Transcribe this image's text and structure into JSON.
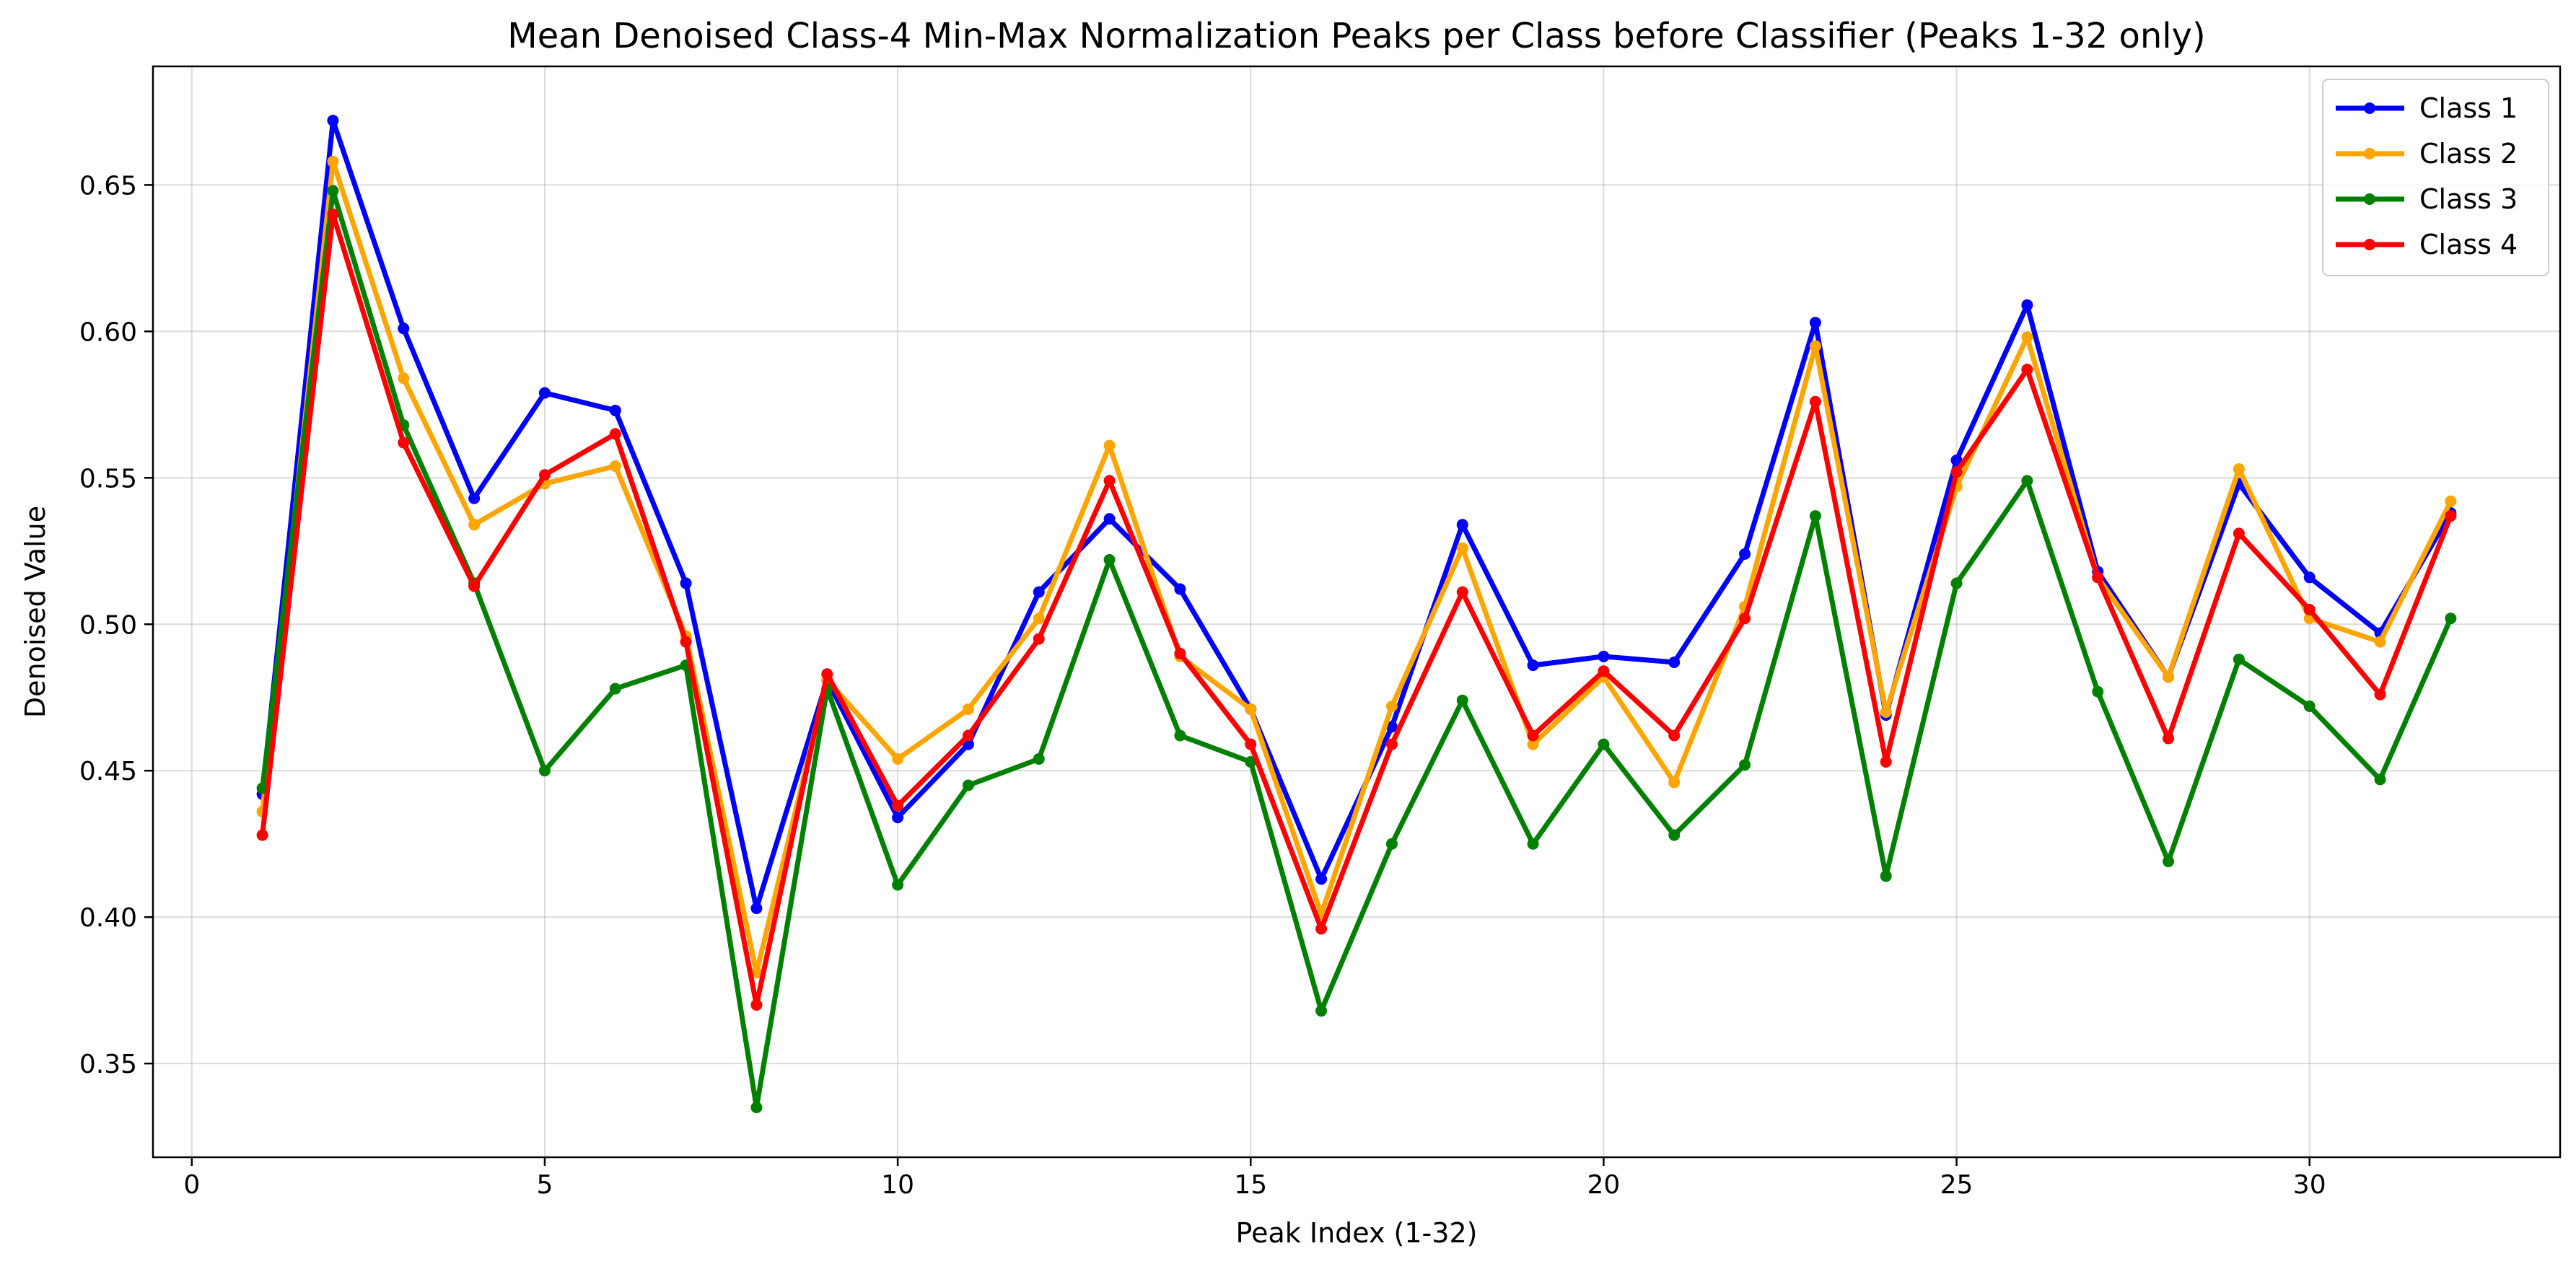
{
  "chart_data": {
    "type": "line",
    "title": "Mean Denoised Class-4 Min-Max Normalization Peaks per Class before Classifier (Peaks 1-32 only)",
    "xlabel": "Peak Index (1-32)",
    "ylabel": "Denoised Value",
    "xlim": [
      -0.55,
      33.55
    ],
    "ylim": [
      0.318,
      0.6905
    ],
    "x_ticks": [
      0,
      5,
      10,
      15,
      20,
      25,
      30
    ],
    "x_tick_labels": [
      "0",
      "5",
      "10",
      "15",
      "20",
      "25",
      "30"
    ],
    "y_ticks": [
      0.35,
      0.4,
      0.45,
      0.5,
      0.55,
      0.6,
      0.65
    ],
    "y_tick_labels": [
      "0.35",
      "0.40",
      "0.45",
      "0.50",
      "0.55",
      "0.60",
      "0.65"
    ],
    "grid": true,
    "legend_position": "top-right",
    "x": [
      1,
      2,
      3,
      4,
      5,
      6,
      7,
      8,
      9,
      10,
      11,
      12,
      13,
      14,
      15,
      16,
      17,
      18,
      19,
      20,
      21,
      22,
      23,
      24,
      25,
      26,
      27,
      28,
      29,
      30,
      31,
      32
    ],
    "series": [
      {
        "name": "Class 1",
        "color": "#0000ff",
        "values": [
          0.442,
          0.672,
          0.601,
          0.543,
          0.579,
          0.573,
          0.514,
          0.403,
          0.481,
          0.434,
          0.459,
          0.511,
          0.536,
          0.512,
          0.471,
          0.413,
          0.465,
          0.534,
          0.486,
          0.489,
          0.487,
          0.524,
          0.603,
          0.469,
          0.556,
          0.609,
          0.518,
          0.482,
          0.548,
          0.516,
          0.497,
          0.538
        ]
      },
      {
        "name": "Class 2",
        "color": "#ffa500",
        "values": [
          0.436,
          0.658,
          0.584,
          0.534,
          0.548,
          0.554,
          0.496,
          0.381,
          0.481,
          0.454,
          0.471,
          0.502,
          0.561,
          0.489,
          0.471,
          0.401,
          0.472,
          0.526,
          0.459,
          0.482,
          0.446,
          0.506,
          0.595,
          0.47,
          0.547,
          0.598,
          0.516,
          0.482,
          0.553,
          0.502,
          0.494,
          0.542
        ]
      },
      {
        "name": "Class 3",
        "color": "#008000",
        "values": [
          0.444,
          0.648,
          0.568,
          0.514,
          0.45,
          0.478,
          0.486,
          0.335,
          0.478,
          0.411,
          0.445,
          0.454,
          0.522,
          0.462,
          0.453,
          0.368,
          0.425,
          0.474,
          0.425,
          0.459,
          0.428,
          0.452,
          0.537,
          0.414,
          0.514,
          0.549,
          0.477,
          0.419,
          0.488,
          0.472,
          0.447,
          0.502
        ]
      },
      {
        "name": "Class 4",
        "color": "#ff0000",
        "values": [
          0.428,
          0.64,
          0.562,
          0.513,
          0.551,
          0.565,
          0.494,
          0.37,
          0.483,
          0.438,
          0.462,
          0.495,
          0.549,
          0.49,
          0.459,
          0.396,
          0.459,
          0.511,
          0.462,
          0.484,
          0.462,
          0.502,
          0.576,
          0.453,
          0.552,
          0.587,
          0.516,
          0.461,
          0.531,
          0.505,
          0.476,
          0.537
        ]
      }
    ]
  }
}
